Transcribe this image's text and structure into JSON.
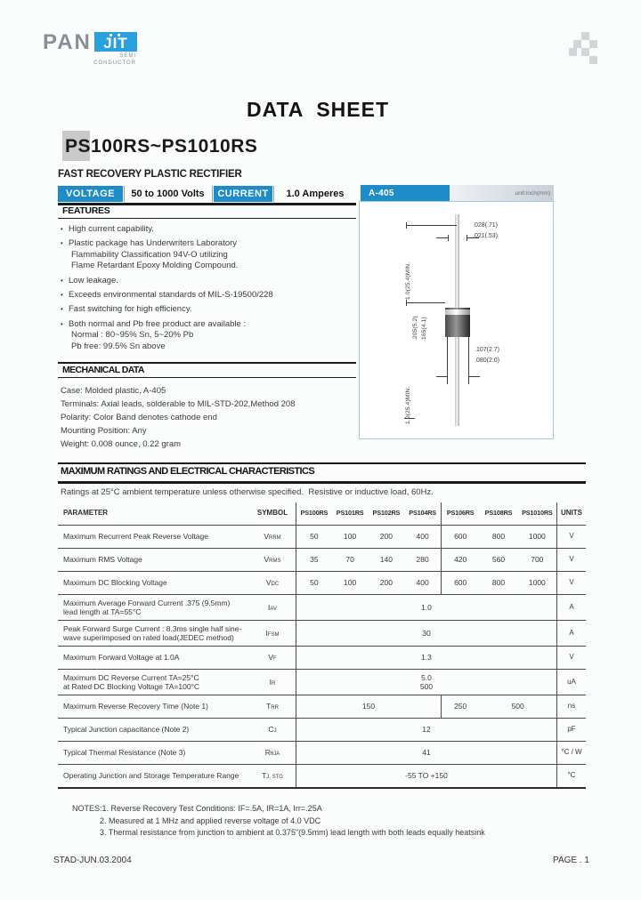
{
  "colors": {
    "accent_blue": "#1d8cc9",
    "logo_blue": "#2aa0dc",
    "checker_gray": "#d3d5d8",
    "light_gray_box": "#c9c9c9",
    "package_border": "#a3c6e2"
  },
  "logo": {
    "pan": "PAN",
    "jit": "JIT",
    "sub_line1": "SEMI",
    "sub_line2": "CONDUCTOR"
  },
  "title": "DATA  SHEET",
  "part_number": "PS100RS~PS1010RS",
  "subtitle": "FAST RECOVERY PLASTIC RECTIFIER",
  "ratings_bar": {
    "voltage_label": "VOLTAGE",
    "voltage_value": "50 to 1000 Volts",
    "current_label": "CURRENT",
    "current_value": "1.0 Amperes"
  },
  "package": {
    "label": "A-405",
    "unit_note": "unit:inch(mm)",
    "dim_lead_length_top": "1.0(25.4)MIN.",
    "dim_lead_dia": [
      ".028(.71)",
      ".021(.53)"
    ],
    "dim_body_length": [
      ".205(5.2)",
      ".165(4.1)"
    ],
    "dim_body_dia": [
      ".107(2.7)",
      ".080(2.0)"
    ],
    "dim_lead_length_bottom": "1.0(25.4)MIN."
  },
  "features": {
    "heading": "FEATURES",
    "items": [
      [
        "High current capability."
      ],
      [
        "Plastic package has Underwriters Laboratory",
        "Flammability Classification 94V-O utilizing",
        "Flame Retardant Epoxy Molding Compound."
      ],
      [
        "Low leakage."
      ],
      [
        "Exceeds environmental standards of MIL-S-19500/228"
      ],
      [
        "Fast switching for high efficiency."
      ],
      [
        "Both normal and Pb free product are available :",
        "Normal : 80~95% Sn, 5~20% Pb",
        "Pb free: 99.5% Sn above"
      ]
    ]
  },
  "mechanical": {
    "heading": "MECHANICAL DATA",
    "items": [
      "Case: Molded plastic, A-405",
      "Terminals: Axial leads, solderable to MIL-STD-202,Method 208",
      "Polarity: Color Band denotes cathode end",
      "Mounting Position: Any",
      "Weight: 0.008 ounce, 0.22 gram"
    ]
  },
  "ratings": {
    "heading": "MAXIMUM RATINGS AND ELECTRICAL CHARACTERISTICS",
    "note": "Ratings at 25°C ambient temperature unless otherwise specified.  Resistive or inductive load, 60Hz.",
    "header": {
      "parameter": "PARAMETER",
      "symbol": "SYMBOL",
      "parts": [
        "PS100RS",
        "PS101RS",
        "PS102RS",
        "PS104RS",
        "PS106RS",
        "PS108RS",
        "PS1010RS"
      ],
      "units": "UNITS"
    },
    "rows": [
      {
        "parameter": [
          "Maximum Recurrent Peak Reverse Voltage"
        ],
        "symbol": [
          "V",
          "RRM"
        ],
        "cells": [
          {
            "t": "50",
            "s": 1
          },
          {
            "t": "100",
            "s": 1
          },
          {
            "t": "200",
            "s": 1
          },
          {
            "t": "400",
            "s": 1
          },
          {
            "t": "600",
            "s": 1
          },
          {
            "t": "800",
            "s": 1
          },
          {
            "t": "1000",
            "s": 1
          }
        ],
        "units": "V"
      },
      {
        "parameter": [
          "Maximum RMS Voltage"
        ],
        "symbol": [
          "V",
          "RMS"
        ],
        "cells": [
          {
            "t": "35",
            "s": 1
          },
          {
            "t": "70",
            "s": 1
          },
          {
            "t": "140",
            "s": 1
          },
          {
            "t": "280",
            "s": 1
          },
          {
            "t": "420",
            "s": 1
          },
          {
            "t": "560",
            "s": 1
          },
          {
            "t": "700",
            "s": 1
          }
        ],
        "units": "V"
      },
      {
        "parameter": [
          "Maximum DC Blocking Voltage"
        ],
        "symbol": [
          "V",
          "DC"
        ],
        "cells": [
          {
            "t": "50",
            "s": 1
          },
          {
            "t": "100",
            "s": 1
          },
          {
            "t": "200",
            "s": 1
          },
          {
            "t": "400",
            "s": 1
          },
          {
            "t": "600",
            "s": 1
          },
          {
            "t": "800",
            "s": 1
          },
          {
            "t": "1000",
            "s": 1
          }
        ],
        "units": "V"
      },
      {
        "parameter": [
          "Maximum Average Forward  Current .375 (9.5mm)",
          "lead length at TA=55°C"
        ],
        "symbol": [
          "I",
          "AV"
        ],
        "cells": [
          {
            "t": "1.0",
            "s": 7
          }
        ],
        "units": "A"
      },
      {
        "parameter": [
          "Peak Forward Surge Current : 8.3ms single half sine-",
          "wave superimposed on rated load(JEDEC method)"
        ],
        "symbol": [
          "I",
          "FSM"
        ],
        "cells": [
          {
            "t": "30",
            "s": 7
          }
        ],
        "units": "A"
      },
      {
        "parameter": [
          "Maximum Forward Voltage at 1.0A"
        ],
        "symbol": [
          "V",
          "F"
        ],
        "cells": [
          {
            "t": "1.3",
            "s": 7
          }
        ],
        "units": "V"
      },
      {
        "parameter": [
          "Maximum DC Reverse Current TA=25°C",
          "at Rated DC Blocking Voltage  TA=100°C"
        ],
        "symbol": [
          "I",
          "R"
        ],
        "cells": [
          {
            "t": "5.0\n500",
            "s": 7
          }
        ],
        "units": "uA"
      },
      {
        "parameter": [
          "Maximum Reverse Recovery Time (Note 1)"
        ],
        "symbol": [
          "T",
          "RR"
        ],
        "cells": [
          {
            "t": "150",
            "s": 4
          },
          {
            "t": "250",
            "s": 1
          },
          {
            "t": "500",
            "s": 2
          }
        ],
        "units": "ns"
      },
      {
        "parameter": [
          "Typical Junction capacitance (Note 2)"
        ],
        "symbol": [
          "C",
          "J"
        ],
        "cells": [
          {
            "t": "12",
            "s": 7
          }
        ],
        "units": "pF"
      },
      {
        "parameter": [
          "Typical Thermal Resistance (Note 3)"
        ],
        "symbol": [
          "R",
          "θJA"
        ],
        "cells": [
          {
            "t": "41",
            "s": 7
          }
        ],
        "units": "°C / W"
      },
      {
        "parameter": [
          "Operating Junction and Storage Temperature Range"
        ],
        "symbol": [
          "T",
          "J, STG"
        ],
        "cells": [
          {
            "t": "-55 TO +150",
            "s": 7
          }
        ],
        "units": "°C"
      }
    ]
  },
  "notes": {
    "lines": [
      "NOTES:1. Reverse Recovery Test Conditions: IF=.5A, IR=1A, Irr=.25A",
      "2. Measured at 1 MHz and applied reverse voltage of 4.0 VDC",
      "3. Thermal resistance from junction to ambient  at 0.375\"(9.5mm) lead length with both  leads equally heatsink"
    ]
  },
  "footer": {
    "left": "STAD-JUN.03.2004",
    "right": "PAGE . 1"
  }
}
